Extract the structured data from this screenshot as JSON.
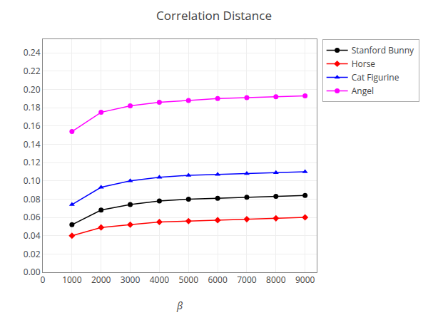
{
  "chart_data": {
    "type": "line",
    "title": "Correlation Distance",
    "xlabel": "β",
    "x": [
      1000,
      2000,
      3000,
      4000,
      5000,
      6000,
      7000,
      8000,
      9000
    ],
    "series": [
      {
        "name": "Stanford Bunny",
        "color": "#000000",
        "marker": "circle",
        "values": [
          0.052,
          0.068,
          0.074,
          0.078,
          0.08,
          0.081,
          0.082,
          0.083,
          0.084
        ]
      },
      {
        "name": "Horse",
        "color": "#ff0000",
        "marker": "diamond",
        "values": [
          0.04,
          0.049,
          0.052,
          0.055,
          0.056,
          0.057,
          0.058,
          0.059,
          0.06
        ]
      },
      {
        "name": "Cat Figurine",
        "color": "#0000ff",
        "marker": "triangle-up",
        "values": [
          0.074,
          0.093,
          0.1,
          0.104,
          0.106,
          0.107,
          0.108,
          0.109,
          0.11
        ]
      },
      {
        "name": "Angel",
        "color": "#ff00ff",
        "marker": "circle",
        "values": [
          0.154,
          0.175,
          0.182,
          0.186,
          0.188,
          0.19,
          0.191,
          0.192,
          0.193
        ]
      }
    ],
    "xlim": [
      0,
      9400
    ],
    "xticks": [
      0,
      1000,
      2000,
      3000,
      4000,
      5000,
      6000,
      7000,
      8000,
      9000
    ],
    "ylim": [
      0,
      0.255
    ],
    "yticks": [
      {
        "value": 0,
        "label": "0.00"
      },
      0.02,
      0.04,
      0.06,
      0.08,
      {
        "value": 0.1,
        "label": "0.10"
      },
      0.12,
      0.14,
      0.16,
      0.18,
      {
        "value": 0.2,
        "label": "0.20"
      },
      0.22,
      0.24
    ],
    "grid": true,
    "legend": "upper right"
  }
}
